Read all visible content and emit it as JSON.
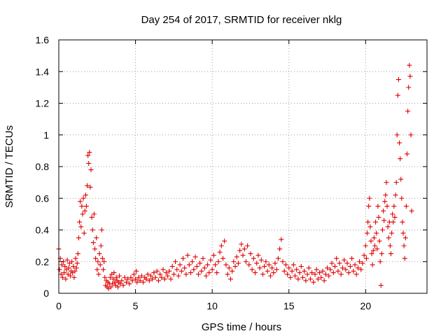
{
  "chart_data": {
    "type": "scatter",
    "title": "Day 254 of 2017, SRMTID for receiver nklg",
    "xlabel": "GPS time / hours",
    "ylabel": "SRMTID / TECUs",
    "xlim": [
      0,
      24
    ],
    "ylim": [
      0,
      1.6
    ],
    "xticks": [
      0,
      5,
      10,
      15,
      20
    ],
    "xtick_labels": [
      "0",
      "5",
      "10",
      "15",
      "20"
    ],
    "yticks": [
      0,
      0.2,
      0.4,
      0.6,
      0.8,
      1.0,
      1.2,
      1.4,
      1.6
    ],
    "ytick_labels": [
      "0",
      "0.2",
      "0.4",
      "0.6",
      "0.8",
      "1",
      "1.2",
      "1.4",
      "1.6"
    ],
    "grid": true,
    "marker": "plus",
    "color": "#e00000",
    "series": [
      {
        "name": "SRMTID",
        "points": [
          [
            0.0,
            0.28
          ],
          [
            0.05,
            0.15
          ],
          [
            0.1,
            0.22
          ],
          [
            0.15,
            0.12
          ],
          [
            0.2,
            0.18
          ],
          [
            0.25,
            0.1
          ],
          [
            0.3,
            0.2
          ],
          [
            0.35,
            0.13
          ],
          [
            0.4,
            0.17
          ],
          [
            0.45,
            0.09
          ],
          [
            0.5,
            0.15
          ],
          [
            0.55,
            0.21
          ],
          [
            0.6,
            0.12
          ],
          [
            0.65,
            0.16
          ],
          [
            0.7,
            0.19
          ],
          [
            0.75,
            0.11
          ],
          [
            0.8,
            0.14
          ],
          [
            0.85,
            0.2
          ],
          [
            0.9,
            0.13
          ],
          [
            0.95,
            0.17
          ],
          [
            1.0,
            0.1
          ],
          [
            1.05,
            0.14
          ],
          [
            1.1,
            0.22
          ],
          [
            1.15,
            0.16
          ],
          [
            1.2,
            0.19
          ],
          [
            1.25,
            0.25
          ],
          [
            1.3,
            0.35
          ],
          [
            1.35,
            0.45
          ],
          [
            1.4,
            0.58
          ],
          [
            1.45,
            0.42
          ],
          [
            1.5,
            0.55
          ],
          [
            1.55,
            0.5
          ],
          [
            1.6,
            0.6
          ],
          [
            1.65,
            0.38
          ],
          [
            1.7,
            0.52
          ],
          [
            1.75,
            0.62
          ],
          [
            1.8,
            0.55
          ],
          [
            1.85,
            0.68
          ],
          [
            1.9,
            0.87
          ],
          [
            1.95,
            0.82
          ],
          [
            2.0,
            0.89
          ],
          [
            2.05,
            0.67
          ],
          [
            2.1,
            0.78
          ],
          [
            2.15,
            0.48
          ],
          [
            2.2,
            0.4
          ],
          [
            2.25,
            0.32
          ],
          [
            2.3,
            0.5
          ],
          [
            2.35,
            0.28
          ],
          [
            2.4,
            0.22
          ],
          [
            2.45,
            0.35
          ],
          [
            2.5,
            0.15
          ],
          [
            2.55,
            0.2
          ],
          [
            2.6,
            0.12
          ],
          [
            2.65,
            0.25
          ],
          [
            2.7,
            0.18
          ],
          [
            2.75,
            0.3
          ],
          [
            2.8,
            0.4
          ],
          [
            2.85,
            0.22
          ],
          [
            2.9,
            0.15
          ],
          [
            2.95,
            0.2
          ],
          [
            3.0,
            0.1
          ],
          [
            3.05,
            0.05
          ],
          [
            3.1,
            0.08
          ],
          [
            3.15,
            0.04
          ],
          [
            3.2,
            0.07
          ],
          [
            3.25,
            0.03
          ],
          [
            3.3,
            0.06
          ],
          [
            3.35,
            0.1
          ],
          [
            3.4,
            0.04
          ],
          [
            3.45,
            0.12
          ],
          [
            3.5,
            0.06
          ],
          [
            3.55,
            0.09
          ],
          [
            3.6,
            0.13
          ],
          [
            3.65,
            0.07
          ],
          [
            3.7,
            0.05
          ],
          [
            3.75,
            0.1
          ],
          [
            3.8,
            0.08
          ],
          [
            3.85,
            0.04
          ],
          [
            3.9,
            0.07
          ],
          [
            3.95,
            0.11
          ],
          [
            4.0,
            0.06
          ],
          [
            4.1,
            0.08
          ],
          [
            4.2,
            0.05
          ],
          [
            4.3,
            0.1
          ],
          [
            4.4,
            0.07
          ],
          [
            4.5,
            0.09
          ],
          [
            4.6,
            0.06
          ],
          [
            4.7,
            0.1
          ],
          [
            4.8,
            0.08
          ],
          [
            4.9,
            0.12
          ],
          [
            5.0,
            0.09
          ],
          [
            5.05,
            0.14
          ],
          [
            5.1,
            0.07
          ],
          [
            5.2,
            0.1
          ],
          [
            5.3,
            0.08
          ],
          [
            5.4,
            0.11
          ],
          [
            5.5,
            0.07
          ],
          [
            5.6,
            0.1
          ],
          [
            5.7,
            0.09
          ],
          [
            5.8,
            0.12
          ],
          [
            5.9,
            0.08
          ],
          [
            6.0,
            0.11
          ],
          [
            6.1,
            0.09
          ],
          [
            6.2,
            0.13
          ],
          [
            6.3,
            0.1
          ],
          [
            6.4,
            0.14
          ],
          [
            6.5,
            0.08
          ],
          [
            6.6,
            0.12
          ],
          [
            6.7,
            0.1
          ],
          [
            6.8,
            0.15
          ],
          [
            6.9,
            0.09
          ],
          [
            7.0,
            0.13
          ],
          [
            7.1,
            0.11
          ],
          [
            7.2,
            0.14
          ],
          [
            7.3,
            0.09
          ],
          [
            7.4,
            0.17
          ],
          [
            7.5,
            0.12
          ],
          [
            7.6,
            0.2
          ],
          [
            7.7,
            0.15
          ],
          [
            7.8,
            0.11
          ],
          [
            7.9,
            0.18
          ],
          [
            8.0,
            0.14
          ],
          [
            8.1,
            0.22
          ],
          [
            8.2,
            0.16
          ],
          [
            8.3,
            0.12
          ],
          [
            8.4,
            0.24
          ],
          [
            8.5,
            0.18
          ],
          [
            8.6,
            0.13
          ],
          [
            8.7,
            0.2
          ],
          [
            8.8,
            0.15
          ],
          [
            8.9,
            0.23
          ],
          [
            9.0,
            0.17
          ],
          [
            9.1,
            0.12
          ],
          [
            9.2,
            0.19
          ],
          [
            9.3,
            0.14
          ],
          [
            9.4,
            0.22
          ],
          [
            9.5,
            0.16
          ],
          [
            9.6,
            0.11
          ],
          [
            9.7,
            0.18
          ],
          [
            9.8,
            0.13
          ],
          [
            9.9,
            0.21
          ],
          [
            10.0,
            0.15
          ],
          [
            10.1,
            0.24
          ],
          [
            10.2,
            0.18
          ],
          [
            10.3,
            0.13
          ],
          [
            10.4,
            0.2
          ],
          [
            10.5,
            0.26
          ],
          [
            10.6,
            0.3
          ],
          [
            10.7,
            0.22
          ],
          [
            10.8,
            0.33
          ],
          [
            10.9,
            0.18
          ],
          [
            11.0,
            0.12
          ],
          [
            11.1,
            0.16
          ],
          [
            11.2,
            0.09
          ],
          [
            11.3,
            0.14
          ],
          [
            11.4,
            0.2
          ],
          [
            11.5,
            0.17
          ],
          [
            11.6,
            0.23
          ],
          [
            11.7,
            0.19
          ],
          [
            11.8,
            0.27
          ],
          [
            11.9,
            0.31
          ],
          [
            12.0,
            0.24
          ],
          [
            12.1,
            0.28
          ],
          [
            12.2,
            0.2
          ],
          [
            12.3,
            0.3
          ],
          [
            12.4,
            0.18
          ],
          [
            12.5,
            0.25
          ],
          [
            12.6,
            0.15
          ],
          [
            12.7,
            0.22
          ],
          [
            12.8,
            0.13
          ],
          [
            12.9,
            0.19
          ],
          [
            13.0,
            0.24
          ],
          [
            13.1,
            0.16
          ],
          [
            13.2,
            0.21
          ],
          [
            13.3,
            0.12
          ],
          [
            13.4,
            0.17
          ],
          [
            13.5,
            0.2
          ],
          [
            13.6,
            0.14
          ],
          [
            13.7,
            0.18
          ],
          [
            13.8,
            0.11
          ],
          [
            13.9,
            0.16
          ],
          [
            14.0,
            0.13
          ],
          [
            14.1,
            0.19
          ],
          [
            14.2,
            0.15
          ],
          [
            14.3,
            0.22
          ],
          [
            14.4,
            0.28
          ],
          [
            14.5,
            0.34
          ],
          [
            14.6,
            0.2
          ],
          [
            14.7,
            0.14
          ],
          [
            14.8,
            0.18
          ],
          [
            14.9,
            0.12
          ],
          [
            15.0,
            0.16
          ],
          [
            15.1,
            0.1
          ],
          [
            15.2,
            0.14
          ],
          [
            15.3,
            0.18
          ],
          [
            15.4,
            0.11
          ],
          [
            15.5,
            0.15
          ],
          [
            15.6,
            0.09
          ],
          [
            15.7,
            0.13
          ],
          [
            15.8,
            0.17
          ],
          [
            15.9,
            0.1
          ],
          [
            16.0,
            0.14
          ],
          [
            16.1,
            0.08
          ],
          [
            16.2,
            0.12
          ],
          [
            16.3,
            0.16
          ],
          [
            16.4,
            0.09
          ],
          [
            16.5,
            0.13
          ],
          [
            16.6,
            0.07
          ],
          [
            16.7,
            0.12
          ],
          [
            16.8,
            0.15
          ],
          [
            16.9,
            0.09
          ],
          [
            17.0,
            0.13
          ],
          [
            17.1,
            0.1
          ],
          [
            17.2,
            0.14
          ],
          [
            17.3,
            0.08
          ],
          [
            17.4,
            0.12
          ],
          [
            17.5,
            0.16
          ],
          [
            17.6,
            0.11
          ],
          [
            17.7,
            0.15
          ],
          [
            17.8,
            0.19
          ],
          [
            17.9,
            0.13
          ],
          [
            18.0,
            0.17
          ],
          [
            18.1,
            0.22
          ],
          [
            18.2,
            0.14
          ],
          [
            18.3,
            0.19
          ],
          [
            18.4,
            0.12
          ],
          [
            18.5,
            0.16
          ],
          [
            18.6,
            0.21
          ],
          [
            18.7,
            0.15
          ],
          [
            18.8,
            0.19
          ],
          [
            18.9,
            0.13
          ],
          [
            19.0,
            0.17
          ],
          [
            19.1,
            0.22
          ],
          [
            19.2,
            0.14
          ],
          [
            19.3,
            0.18
          ],
          [
            19.4,
            0.12
          ],
          [
            19.5,
            0.16
          ],
          [
            19.6,
            0.2
          ],
          [
            19.7,
            0.15
          ],
          [
            19.8,
            0.19
          ],
          [
            19.9,
            0.24
          ],
          [
            20.0,
            0.3
          ],
          [
            20.05,
            0.22
          ],
          [
            20.1,
            0.38
          ],
          [
            20.15,
            0.45
          ],
          [
            20.2,
            0.55
          ],
          [
            20.25,
            0.6
          ],
          [
            20.3,
            0.42
          ],
          [
            20.35,
            0.33
          ],
          [
            20.4,
            0.25
          ],
          [
            20.45,
            0.18
          ],
          [
            20.5,
            0.27
          ],
          [
            20.55,
            0.35
          ],
          [
            20.6,
            0.3
          ],
          [
            20.65,
            0.45
          ],
          [
            20.7,
            0.38
          ],
          [
            20.75,
            0.28
          ],
          [
            20.8,
            0.55
          ],
          [
            20.85,
            0.48
          ],
          [
            20.9,
            0.33
          ],
          [
            20.95,
            0.2
          ],
          [
            21.0,
            0.05
          ],
          [
            21.05,
            0.25
          ],
          [
            21.1,
            0.4
          ],
          [
            21.15,
            0.52
          ],
          [
            21.2,
            0.46
          ],
          [
            21.25,
            0.58
          ],
          [
            21.3,
            0.62
          ],
          [
            21.35,
            0.7
          ],
          [
            21.4,
            0.55
          ],
          [
            21.45,
            0.42
          ],
          [
            21.5,
            0.35
          ],
          [
            21.55,
            0.45
          ],
          [
            21.6,
            0.3
          ],
          [
            21.65,
            0.25
          ],
          [
            21.7,
            0.38
          ],
          [
            21.75,
            0.5
          ],
          [
            21.8,
            0.45
          ],
          [
            21.85,
            0.55
          ],
          [
            21.9,
            0.48
          ],
          [
            21.95,
            0.62
          ],
          [
            22.0,
            0.7
          ],
          [
            22.05,
            1.0
          ],
          [
            22.1,
            1.25
          ],
          [
            22.15,
            1.35
          ],
          [
            22.2,
            0.95
          ],
          [
            22.25,
            0.85
          ],
          [
            22.3,
            0.72
          ],
          [
            22.35,
            0.6
          ],
          [
            22.4,
            0.45
          ],
          [
            22.45,
            0.38
          ],
          [
            22.5,
            0.3
          ],
          [
            22.55,
            0.22
          ],
          [
            22.6,
            0.35
          ],
          [
            22.65,
            0.55
          ],
          [
            22.7,
            0.88
          ],
          [
            22.75,
            1.15
          ],
          [
            22.8,
            1.3
          ],
          [
            22.85,
            1.44
          ],
          [
            22.9,
            1.37
          ],
          [
            22.95,
            1.0
          ],
          [
            23.0,
            0.52
          ]
        ]
      }
    ]
  }
}
